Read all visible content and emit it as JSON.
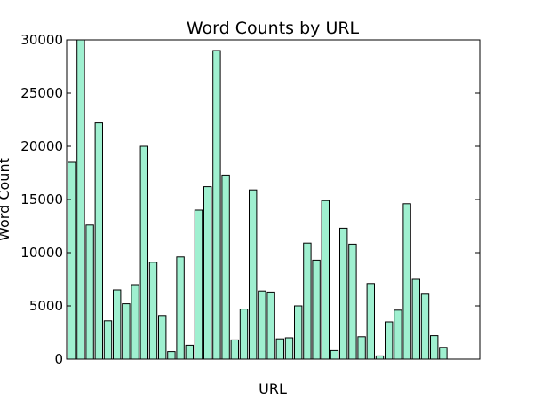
{
  "chart_data": {
    "type": "bar",
    "title": "Word Counts by URL",
    "xlabel": "URL",
    "ylabel": "Word Count",
    "ylim": [
      0,
      30000
    ],
    "yticks": [
      0,
      5000,
      10000,
      15000,
      20000,
      25000,
      30000
    ],
    "grid": false,
    "bar_color": "#9ff0d0",
    "values": [
      18500,
      30000,
      12600,
      22200,
      3600,
      6500,
      5200,
      7000,
      20000,
      9100,
      4100,
      700,
      9600,
      1300,
      14000,
      16200,
      29000,
      17300,
      1800,
      4700,
      15900,
      6400,
      6300,
      1900,
      2000,
      5000,
      10900,
      9300,
      14900,
      800,
      12300,
      10800,
      2100,
      7100,
      300,
      3500,
      4600,
      14600,
      7500,
      6100,
      2200,
      1100
    ]
  }
}
